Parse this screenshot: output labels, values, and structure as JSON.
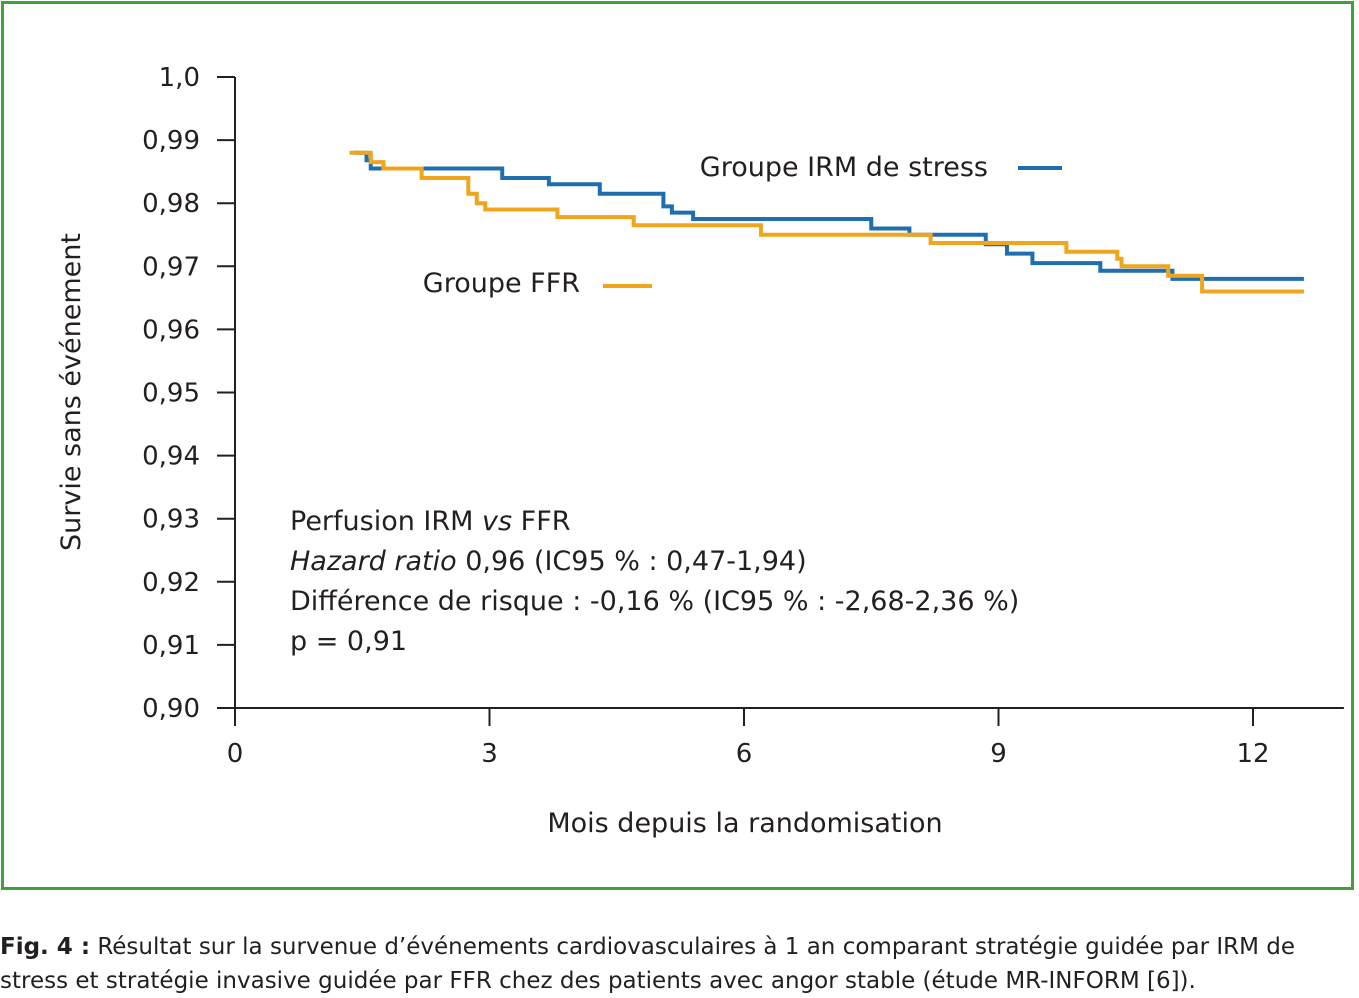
{
  "chart_data": {
    "type": "line",
    "xlabel": "Mois depuis la randomisation",
    "ylabel": "Survie sans événement",
    "xlim": [
      0,
      12.6
    ],
    "ylim": [
      0.9,
      1.0
    ],
    "x_ticks": [
      0,
      3,
      6,
      9,
      12
    ],
    "x_tick_labels": [
      "0",
      "3",
      "6",
      "9",
      "12"
    ],
    "y_ticks": [
      1.0,
      0.99,
      0.98,
      0.97,
      0.96,
      0.95,
      0.94,
      0.93,
      0.92,
      0.91,
      0.9
    ],
    "y_tick_labels": [
      "1,0",
      "0,99",
      "0,98",
      "0,97",
      "0,96",
      "0,95",
      "0,94",
      "0,93",
      "0,92",
      "0,91",
      "0,90"
    ],
    "grid": false,
    "step": true,
    "series": [
      {
        "name": "Groupe IRM de stress",
        "color": "#1f6fb0",
        "x": [
          1.4,
          1.5,
          1.55,
          1.6,
          3.15,
          3.7,
          4.3,
          5.05,
          5.15,
          5.4,
          7.5,
          7.95,
          8.85,
          9.1,
          9.4,
          10.2,
          11.05,
          12.6
        ],
        "y": [
          0.988,
          0.988,
          0.9868,
          0.9855,
          0.984,
          0.983,
          0.9815,
          0.9795,
          0.9785,
          0.9775,
          0.976,
          0.975,
          0.9735,
          0.972,
          0.9705,
          0.9693,
          0.968,
          0.968
        ]
      },
      {
        "name": "Groupe FFR",
        "color": "#f0a51e",
        "x": [
          1.35,
          1.6,
          1.75,
          2.2,
          2.75,
          2.85,
          2.95,
          3.8,
          4.7,
          6.2,
          8.2,
          9.8,
          10.4,
          10.45,
          11.0,
          11.4,
          12.6
        ],
        "y": [
          0.988,
          0.9865,
          0.9855,
          0.984,
          0.9815,
          0.98,
          0.979,
          0.9778,
          0.9765,
          0.975,
          0.9737,
          0.9723,
          0.9712,
          0.97,
          0.9685,
          0.966,
          0.966
        ]
      }
    ]
  },
  "annotation_lines": [
    {
      "italic": "",
      "regular": "Perfusion IRM ",
      "italic2": "vs",
      "regular2": " FFR"
    },
    {
      "italic": "Hazard ratio",
      "regular": " 0,96 (IC95 % : 0,47-1,94)",
      "italic2": "",
      "regular2": ""
    },
    {
      "italic": "",
      "regular": "Différence de risque : -0,16 % (IC95 % : -2,68-2,36 %)",
      "italic2": "",
      "regular2": ""
    },
    {
      "italic": "",
      "regular": "p = 0,91",
      "italic2": "",
      "regular2": ""
    }
  ],
  "caption": {
    "label": "Fig. 4 :",
    "text": " Résultat sur la survenue d’événements cardiovasculaires à 1 an comparant stratégie guidée par IRM de stress et stratégie invasive guidée par FFR chez des patients avec angor stable (étude MR-INFORM [6])."
  },
  "colors": {
    "frame": "#3ea13a",
    "axis": "#231f20"
  }
}
